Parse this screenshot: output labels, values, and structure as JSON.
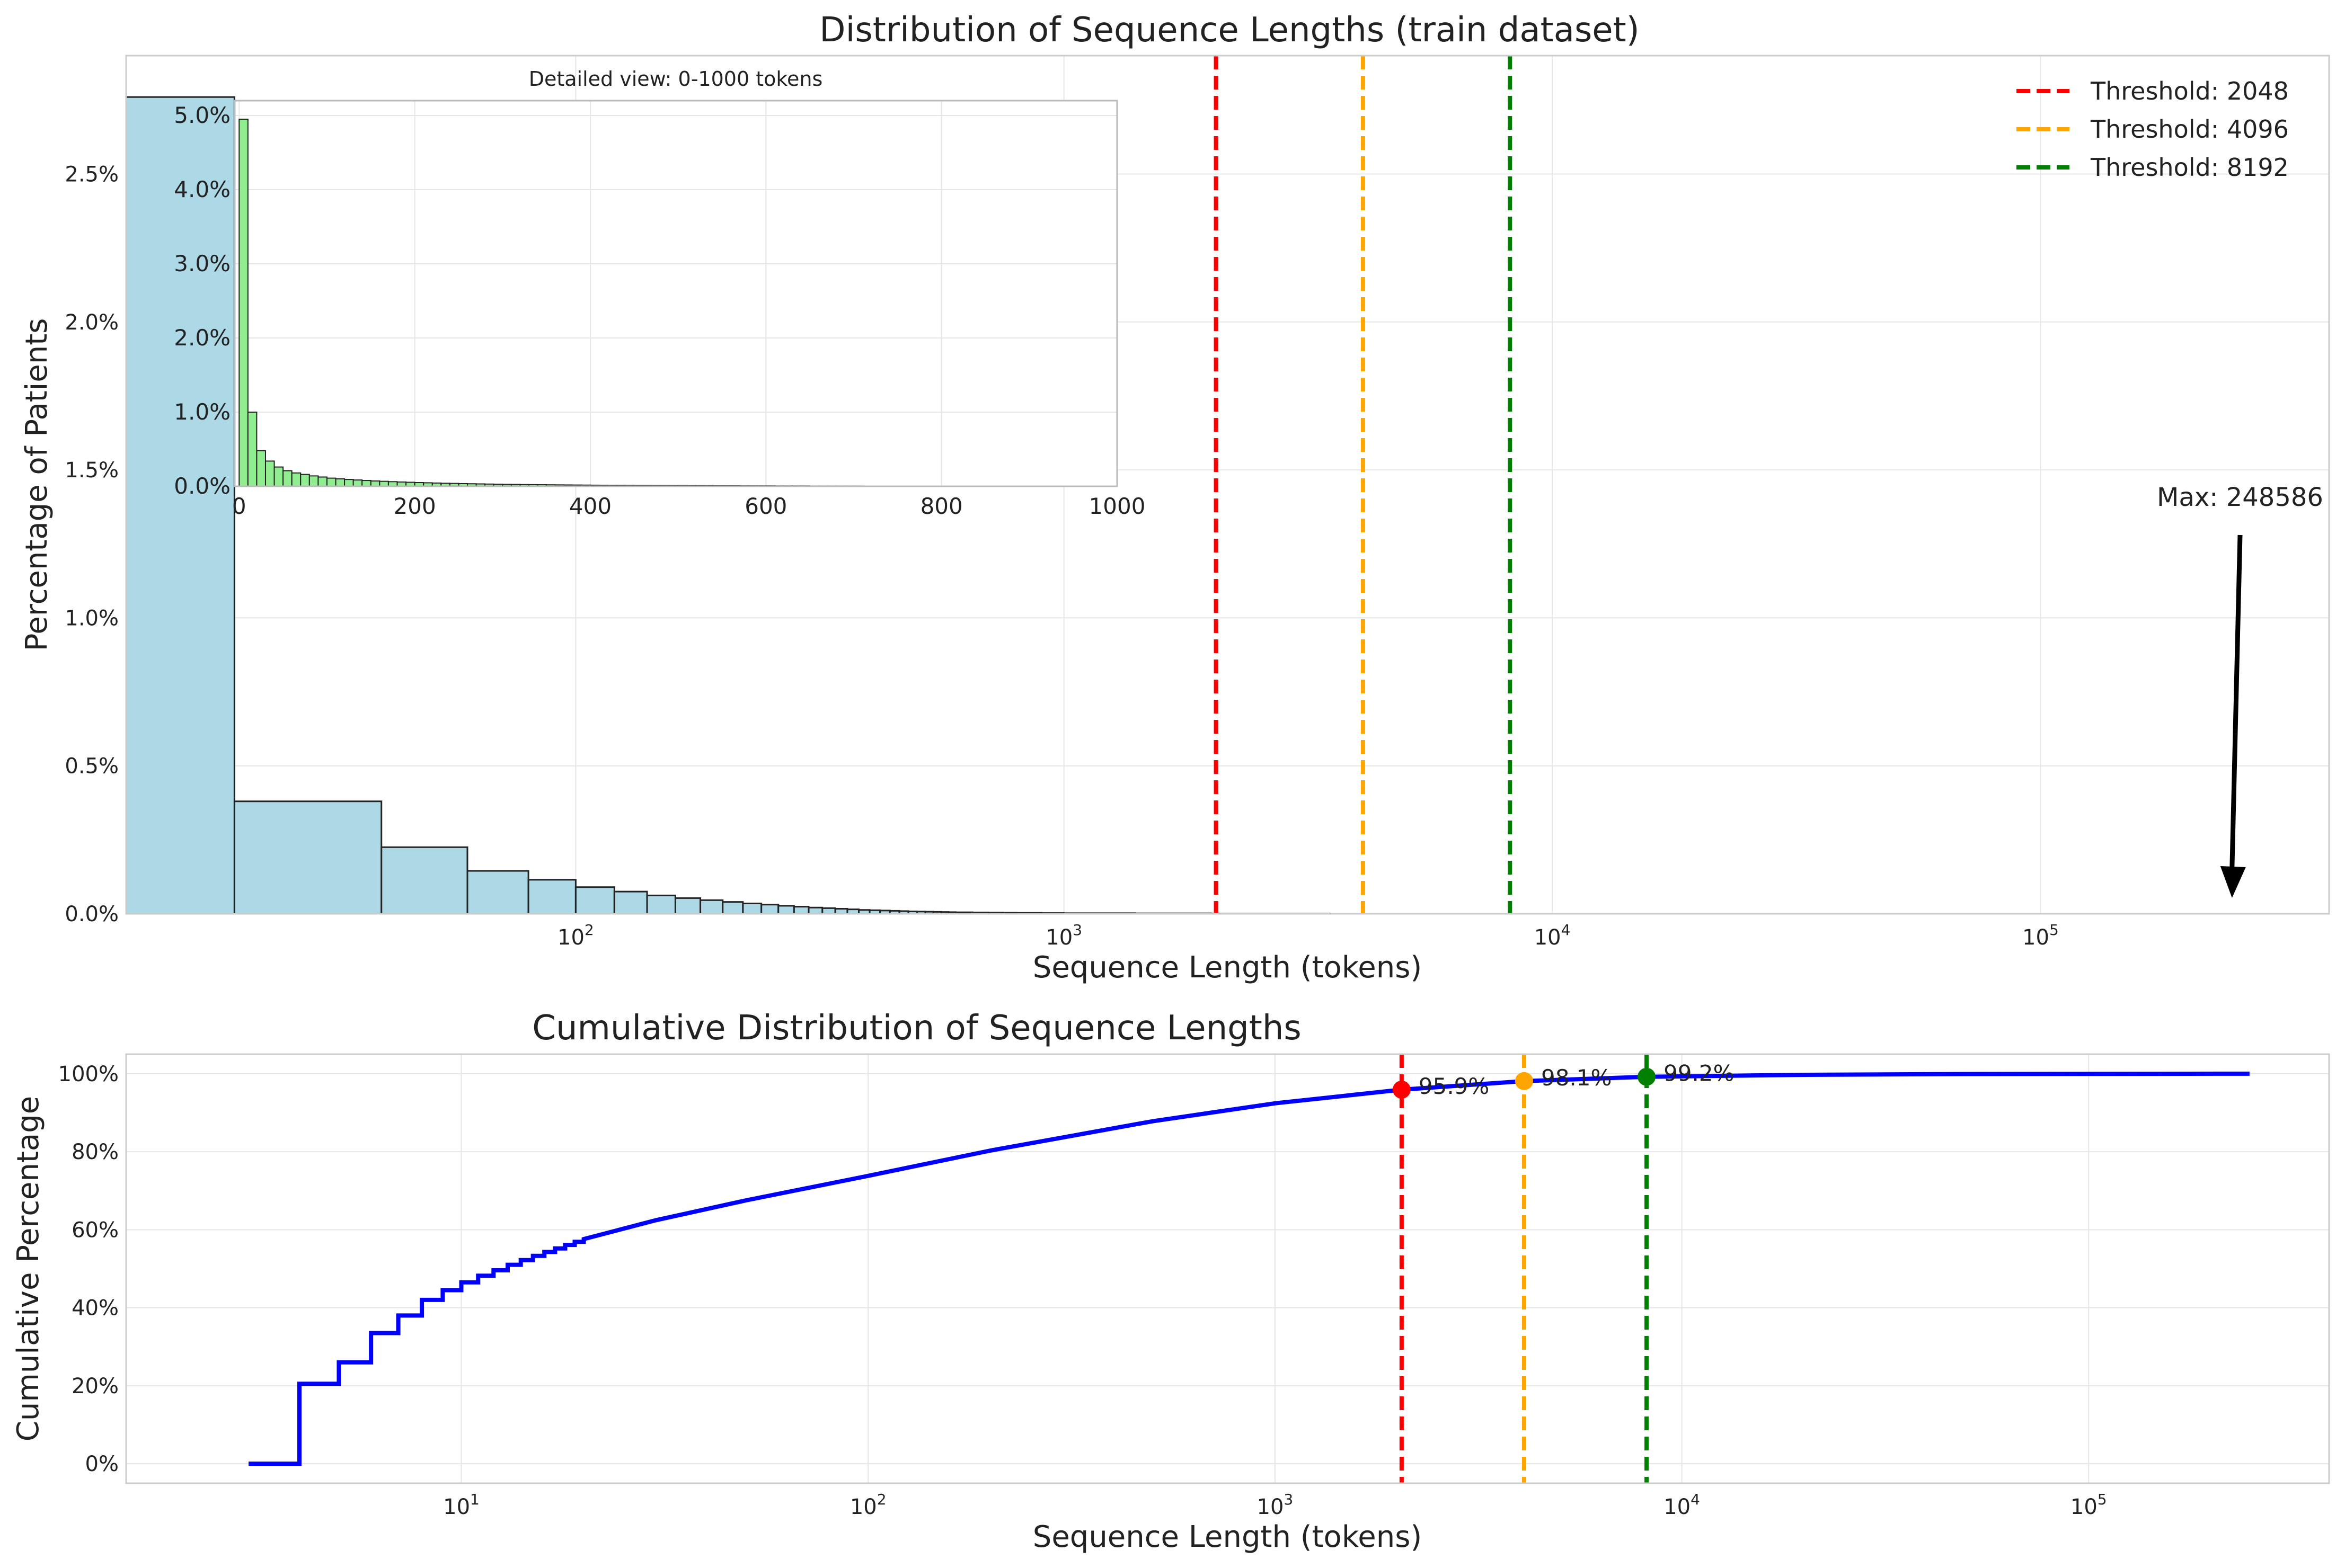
{
  "chart_data": [
    {
      "type": "bar",
      "title": "Distribution of Sequence Lengths (train dataset)",
      "xlabel": "Sequence Length (tokens)",
      "ylabel": "Percentage of Patients",
      "xscale": "log",
      "xlim": [
        12,
        390000
      ],
      "ylim": [
        0,
        2.9
      ],
      "yticks": [
        "0.0%",
        "0.5%",
        "1.0%",
        "1.5%",
        "2.0%",
        "2.5%"
      ],
      "ytick_values": [
        0,
        0.5,
        1.0,
        1.5,
        2.0,
        2.5
      ],
      "xticks": [
        {
          "value": 100,
          "base": "10",
          "exp": "2"
        },
        {
          "value": 1000,
          "base": "10",
          "exp": "3"
        },
        {
          "value": 10000,
          "base": "10",
          "exp": "4"
        },
        {
          "value": 100000,
          "base": "10",
          "exp": "5"
        }
      ],
      "grid": true,
      "legend_position": "top-right",
      "bar_color": "#add8e6",
      "bins": [
        {
          "x0": 12,
          "x1": 20,
          "value": 2.76
        },
        {
          "x0": 20,
          "x1": 40,
          "value": 0.38
        },
        {
          "x0": 40,
          "x1": 60,
          "value": 0.225
        },
        {
          "x0": 60,
          "x1": 80,
          "value": 0.145
        },
        {
          "x0": 80,
          "x1": 100,
          "value": 0.115
        },
        {
          "x0": 100,
          "x1": 120,
          "value": 0.09
        },
        {
          "x0": 120,
          "x1": 140,
          "value": 0.075
        },
        {
          "x0": 140,
          "x1": 160,
          "value": 0.062
        },
        {
          "x0": 160,
          "x1": 180,
          "value": 0.053
        },
        {
          "x0": 180,
          "x1": 200,
          "value": 0.046
        },
        {
          "x0": 200,
          "x1": 220,
          "value": 0.04
        },
        {
          "x0": 220,
          "x1": 240,
          "value": 0.035
        },
        {
          "x0": 240,
          "x1": 260,
          "value": 0.031
        },
        {
          "x0": 260,
          "x1": 280,
          "value": 0.027
        },
        {
          "x0": 280,
          "x1": 300,
          "value": 0.024
        },
        {
          "x0": 300,
          "x1": 320,
          "value": 0.021
        },
        {
          "x0": 320,
          "x1": 340,
          "value": 0.019
        },
        {
          "x0": 340,
          "x1": 360,
          "value": 0.017
        },
        {
          "x0": 360,
          "x1": 380,
          "value": 0.015
        },
        {
          "x0": 380,
          "x1": 400,
          "value": 0.013
        },
        {
          "x0": 400,
          "x1": 420,
          "value": 0.012
        },
        {
          "x0": 420,
          "x1": 440,
          "value": 0.011
        },
        {
          "x0": 440,
          "x1": 460,
          "value": 0.01
        },
        {
          "x0": 460,
          "x1": 480,
          "value": 0.009
        },
        {
          "x0": 480,
          "x1": 500,
          "value": 0.008
        },
        {
          "x0": 500,
          "x1": 520,
          "value": 0.0075
        },
        {
          "x0": 520,
          "x1": 540,
          "value": 0.007
        },
        {
          "x0": 540,
          "x1": 560,
          "value": 0.0065
        },
        {
          "x0": 560,
          "x1": 580,
          "value": 0.006
        },
        {
          "x0": 580,
          "x1": 600,
          "value": 0.0055
        },
        {
          "x0": 600,
          "x1": 650,
          "value": 0.005
        },
        {
          "x0": 650,
          "x1": 700,
          "value": 0.0045
        },
        {
          "x0": 700,
          "x1": 750,
          "value": 0.004
        },
        {
          "x0": 750,
          "x1": 800,
          "value": 0.0035
        },
        {
          "x0": 800,
          "x1": 900,
          "value": 0.003
        },
        {
          "x0": 900,
          "x1": 1000,
          "value": 0.0025
        },
        {
          "x0": 1000,
          "x1": 1400,
          "value": 0.002
        },
        {
          "x0": 1400,
          "x1": 2000,
          "value": 0.0015
        },
        {
          "x0": 2000,
          "x1": 3500,
          "value": 0.001
        }
      ],
      "thresholds": [
        {
          "label": "Threshold: 2048",
          "value": 2048,
          "color": "#ff0000"
        },
        {
          "label": "Threshold: 4096",
          "value": 4096,
          "color": "#ffa500"
        },
        {
          "label": "Threshold: 8192",
          "value": 8192,
          "color": "#008000"
        }
      ],
      "annotation": {
        "text": "Max: 248586",
        "x": 248586
      },
      "inset": {
        "type": "bar",
        "title": "Detailed view: 0-1000 tokens",
        "xlim": [
          -5,
          1000
        ],
        "ylim": [
          0,
          5.2
        ],
        "xticks": [
          "0",
          "200",
          "400",
          "600",
          "800",
          "1000"
        ],
        "xtick_values": [
          0,
          200,
          400,
          600,
          800,
          1000
        ],
        "yticks": [
          "0.0%",
          "1.0%",
          "2.0%",
          "3.0%",
          "4.0%",
          "5.0%"
        ],
        "ytick_values": [
          0,
          1,
          2,
          3,
          4,
          5
        ],
        "bar_color": "#90ee90",
        "bin_width": 10,
        "bin_start": 0,
        "values": [
          4.95,
          1.0,
          0.48,
          0.34,
          0.26,
          0.21,
          0.18,
          0.16,
          0.14,
          0.125,
          0.11,
          0.1,
          0.092,
          0.085,
          0.078,
          0.072,
          0.067,
          0.062,
          0.058,
          0.054,
          0.05,
          0.047,
          0.044,
          0.041,
          0.039,
          0.036,
          0.034,
          0.032,
          0.03,
          0.028,
          0.026,
          0.025,
          0.023,
          0.022,
          0.021,
          0.02,
          0.019,
          0.018,
          0.017,
          0.016,
          0.015,
          0.014,
          0.013,
          0.013,
          0.012,
          0.011,
          0.011,
          0.01,
          0.01,
          0.009,
          0.009,
          0.008,
          0.008,
          0.008,
          0.007,
          0.007,
          0.007,
          0.006,
          0.006,
          0.006,
          0.006,
          0.005,
          0.005,
          0.005,
          0.005,
          0.004,
          0.004,
          0.004,
          0.004,
          0.004,
          0.004,
          0.003,
          0.003,
          0.003,
          0.003,
          0.003,
          0.003,
          0.003,
          0.003,
          0.002,
          0.002,
          0.002,
          0.002,
          0.002
        ]
      }
    },
    {
      "type": "line",
      "title": "Cumulative Distribution of Sequence Lengths",
      "xlabel": "Sequence Length (tokens)",
      "ylabel": "Cumulative Percentage",
      "xscale": "log",
      "xlim": [
        1.5,
        390000
      ],
      "ylim": [
        -5,
        105
      ],
      "yticks": [
        "0%",
        "20%",
        "40%",
        "60%",
        "80%",
        "100%"
      ],
      "ytick_values": [
        0,
        20,
        40,
        60,
        80,
        100
      ],
      "xticks": [
        {
          "value": 10,
          "base": "10",
          "exp": "1"
        },
        {
          "value": 100,
          "base": "10",
          "exp": "2"
        },
        {
          "value": 1000,
          "base": "10",
          "exp": "3"
        },
        {
          "value": 10000,
          "base": "10",
          "exp": "4"
        },
        {
          "value": 100000,
          "base": "10",
          "exp": "5"
        }
      ],
      "grid": true,
      "line_color": "#0000ff",
      "steps": [
        {
          "x": 3,
          "y": 0
        },
        {
          "x": 4,
          "y": 20.5
        },
        {
          "x": 5,
          "y": 26
        },
        {
          "x": 6,
          "y": 33.5
        },
        {
          "x": 7,
          "y": 38
        },
        {
          "x": 8,
          "y": 42
        },
        {
          "x": 9,
          "y": 44.5
        },
        {
          "x": 10,
          "y": 46.5
        },
        {
          "x": 11,
          "y": 48.2
        },
        {
          "x": 12,
          "y": 49.6
        },
        {
          "x": 13,
          "y": 51
        },
        {
          "x": 14,
          "y": 52.2
        },
        {
          "x": 15,
          "y": 53.3
        },
        {
          "x": 16,
          "y": 54.3
        },
        {
          "x": 17,
          "y": 55.2
        },
        {
          "x": 18,
          "y": 56.1
        },
        {
          "x": 19,
          "y": 56.9
        },
        {
          "x": 20,
          "y": 57.6
        }
      ],
      "curve": [
        {
          "x": 20,
          "y": 57.6
        },
        {
          "x": 30,
          "y": 62.4
        },
        {
          "x": 50,
          "y": 67.5
        },
        {
          "x": 100,
          "y": 73.8
        },
        {
          "x": 200,
          "y": 80.3
        },
        {
          "x": 500,
          "y": 87.8
        },
        {
          "x": 1000,
          "y": 92.4
        },
        {
          "x": 2048,
          "y": 95.9
        },
        {
          "x": 4096,
          "y": 98.1
        },
        {
          "x": 8192,
          "y": 99.2
        },
        {
          "x": 20000,
          "y": 99.7
        },
        {
          "x": 50000,
          "y": 99.9
        },
        {
          "x": 248586,
          "y": 100
        }
      ],
      "markers": [
        {
          "x": 2048,
          "y": 95.9,
          "label": "95.9%",
          "color": "#ff0000"
        },
        {
          "x": 4096,
          "y": 98.1,
          "label": "98.1%",
          "color": "#ffa500"
        },
        {
          "x": 8192,
          "y": 99.2,
          "label": "99.2%",
          "color": "#008000"
        }
      ]
    }
  ]
}
